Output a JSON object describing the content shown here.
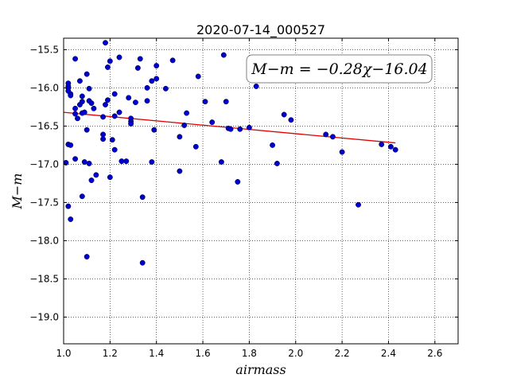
{
  "chart_data": {
    "type": "scatter",
    "title": "2020-07-14_000527",
    "xlabel": "airmass",
    "ylabel": "M−m",
    "xlim": [
      1.0,
      2.7
    ],
    "ylim": [
      -19.35,
      -15.35
    ],
    "x_ticks": [
      1.0,
      1.2,
      1.4,
      1.6,
      1.8,
      2.0,
      2.2,
      2.4,
      2.6
    ],
    "x_tick_labels": [
      "1.0",
      "1.2",
      "1.4",
      "1.6",
      "1.8",
      "2.0",
      "2.2",
      "2.4",
      "2.6"
    ],
    "y_ticks": [
      -15.5,
      -16.0,
      -16.5,
      -17.0,
      -17.5,
      -18.0,
      -18.5,
      -19.0
    ],
    "y_tick_labels": [
      "−15.5",
      "−16.0",
      "−16.5",
      "−17.0",
      "−17.5",
      "−18.0",
      "−18.5",
      "−19.0"
    ],
    "grid": true,
    "annotation": "M−m = −0.28χ−16.04",
    "colors": {
      "points": "#0000cc",
      "fit": "#e00000"
    },
    "fit_line": {
      "slope": -0.28,
      "intercept": -16.04,
      "x_range": [
        1.0,
        2.43
      ]
    },
    "points": [
      {
        "x": 1.01,
        "y": -16.98
      },
      {
        "x": 1.02,
        "y": -15.94
      },
      {
        "x": 1.02,
        "y": -15.98
      },
      {
        "x": 1.02,
        "y": -16.0
      },
      {
        "x": 1.02,
        "y": -16.04
      },
      {
        "x": 1.03,
        "y": -16.08
      },
      {
        "x": 1.03,
        "y": -16.1
      },
      {
        "x": 1.02,
        "y": -16.74
      },
      {
        "x": 1.03,
        "y": -16.75
      },
      {
        "x": 1.02,
        "y": -17.55
      },
      {
        "x": 1.03,
        "y": -17.72
      },
      {
        "x": 1.05,
        "y": -15.62
      },
      {
        "x": 1.05,
        "y": -16.27
      },
      {
        "x": 1.05,
        "y": -16.34
      },
      {
        "x": 1.06,
        "y": -16.4
      },
      {
        "x": 1.05,
        "y": -16.93
      },
      {
        "x": 1.07,
        "y": -15.91
      },
      {
        "x": 1.07,
        "y": -16.22
      },
      {
        "x": 1.08,
        "y": -16.18
      },
      {
        "x": 1.08,
        "y": -16.33
      },
      {
        "x": 1.08,
        "y": -16.11
      },
      {
        "x": 1.09,
        "y": -16.32
      },
      {
        "x": 1.08,
        "y": -17.42
      },
      {
        "x": 1.09,
        "y": -16.97
      },
      {
        "x": 1.1,
        "y": -15.82
      },
      {
        "x": 1.1,
        "y": -16.55
      },
      {
        "x": 1.1,
        "y": -18.21
      },
      {
        "x": 1.11,
        "y": -16.01
      },
      {
        "x": 1.11,
        "y": -16.17
      },
      {
        "x": 1.11,
        "y": -16.99
      },
      {
        "x": 1.12,
        "y": -16.2
      },
      {
        "x": 1.12,
        "y": -17.21
      },
      {
        "x": 1.13,
        "y": -16.27
      },
      {
        "x": 1.14,
        "y": -17.14
      },
      {
        "x": 1.17,
        "y": -16.38
      },
      {
        "x": 1.17,
        "y": -16.61
      },
      {
        "x": 1.17,
        "y": -16.67
      },
      {
        "x": 1.18,
        "y": -15.41
      },
      {
        "x": 1.18,
        "y": -16.22
      },
      {
        "x": 1.19,
        "y": -15.73
      },
      {
        "x": 1.19,
        "y": -16.16
      },
      {
        "x": 1.2,
        "y": -15.65
      },
      {
        "x": 1.2,
        "y": -17.17
      },
      {
        "x": 1.21,
        "y": -16.68
      },
      {
        "x": 1.22,
        "y": -16.37
      },
      {
        "x": 1.22,
        "y": -16.81
      },
      {
        "x": 1.22,
        "y": -16.08
      },
      {
        "x": 1.24,
        "y": -15.6
      },
      {
        "x": 1.24,
        "y": -16.32
      },
      {
        "x": 1.25,
        "y": -16.96
      },
      {
        "x": 1.27,
        "y": -16.96
      },
      {
        "x": 1.28,
        "y": -16.13
      },
      {
        "x": 1.29,
        "y": -16.4
      },
      {
        "x": 1.29,
        "y": -16.44
      },
      {
        "x": 1.29,
        "y": -16.47
      },
      {
        "x": 1.31,
        "y": -16.19
      },
      {
        "x": 1.32,
        "y": -15.74
      },
      {
        "x": 1.33,
        "y": -15.62
      },
      {
        "x": 1.34,
        "y": -17.43
      },
      {
        "x": 1.34,
        "y": -18.29
      },
      {
        "x": 1.36,
        "y": -16.0
      },
      {
        "x": 1.36,
        "y": -16.17
      },
      {
        "x": 1.38,
        "y": -15.91
      },
      {
        "x": 1.38,
        "y": -16.97
      },
      {
        "x": 1.39,
        "y": -16.55
      },
      {
        "x": 1.4,
        "y": -15.88
      },
      {
        "x": 1.4,
        "y": -15.71
      },
      {
        "x": 1.44,
        "y": -16.01
      },
      {
        "x": 1.47,
        "y": -15.64
      },
      {
        "x": 1.5,
        "y": -16.64
      },
      {
        "x": 1.5,
        "y": -17.09
      },
      {
        "x": 1.52,
        "y": -16.49
      },
      {
        "x": 1.53,
        "y": -16.33
      },
      {
        "x": 1.57,
        "y": -16.77
      },
      {
        "x": 1.58,
        "y": -15.85
      },
      {
        "x": 1.61,
        "y": -16.18
      },
      {
        "x": 1.64,
        "y": -16.45
      },
      {
        "x": 1.68,
        "y": -16.97
      },
      {
        "x": 1.69,
        "y": -15.57
      },
      {
        "x": 1.7,
        "y": -16.18
      },
      {
        "x": 1.71,
        "y": -16.53
      },
      {
        "x": 1.72,
        "y": -16.54
      },
      {
        "x": 1.75,
        "y": -17.23
      },
      {
        "x": 1.76,
        "y": -16.54
      },
      {
        "x": 1.8,
        "y": -16.52
      },
      {
        "x": 1.83,
        "y": -15.98
      },
      {
        "x": 1.9,
        "y": -16.75
      },
      {
        "x": 1.92,
        "y": -16.99
      },
      {
        "x": 1.95,
        "y": -16.35
      },
      {
        "x": 1.98,
        "y": -16.42
      },
      {
        "x": 2.13,
        "y": -16.61
      },
      {
        "x": 2.16,
        "y": -16.64
      },
      {
        "x": 2.2,
        "y": -16.84
      },
      {
        "x": 2.27,
        "y": -17.53
      },
      {
        "x": 2.37,
        "y": -16.74
      },
      {
        "x": 2.41,
        "y": -16.77
      },
      {
        "x": 2.43,
        "y": -16.81
      }
    ]
  }
}
